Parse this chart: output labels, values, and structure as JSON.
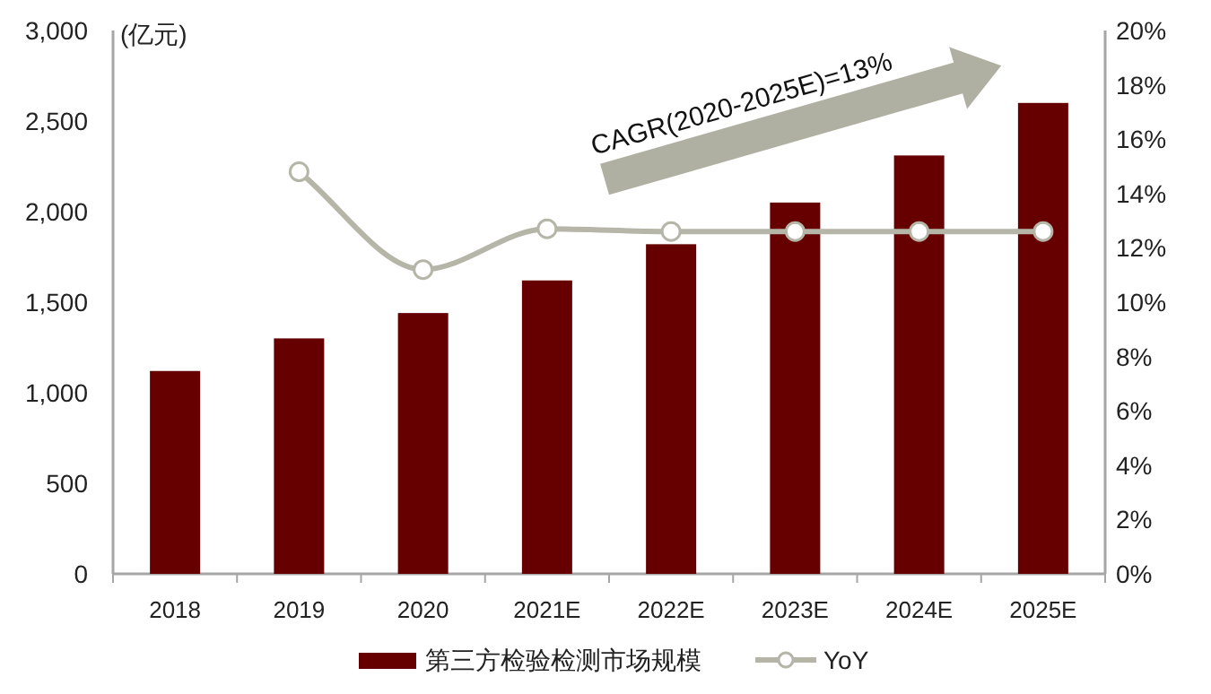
{
  "chart_data": {
    "type": "bar",
    "ylabel": "(亿元)",
    "categories": [
      "2018",
      "2019",
      "2020",
      "2021E",
      "2022E",
      "2023E",
      "2024E",
      "2025E"
    ],
    "series": [
      {
        "name": "第三方检验检测市场规模",
        "color": "#660000",
        "values": [
          1120,
          1300,
          1440,
          1620,
          1820,
          2050,
          2310,
          2600
        ]
      },
      {
        "name": "YoY",
        "type": "line",
        "axis": "y2",
        "color": "#b5b5a8",
        "marker": "circle",
        "values": [
          null,
          14.8,
          11.2,
          12.7,
          12.6,
          12.6,
          12.6,
          12.6
        ]
      }
    ],
    "ylim": [
      0,
      3000
    ],
    "yticks": [
      0,
      500,
      {
        "value": 1000,
        "label": "1,000"
      },
      {
        "value": 1500,
        "label": "1,500"
      },
      {
        "value": 2000,
        "label": "2,000"
      },
      {
        "value": 2500,
        "label": "2,500"
      },
      {
        "value": 3000,
        "label": "3,000"
      }
    ],
    "y2lim": [
      0,
      20
    ],
    "y2ticks": [
      {
        "value": 0,
        "label": "0%"
      },
      {
        "value": 2,
        "label": "2%"
      },
      {
        "value": 4,
        "label": "4%"
      },
      {
        "value": 6,
        "label": "6%"
      },
      {
        "value": 8,
        "label": "8%"
      },
      {
        "value": 10,
        "label": "10%"
      },
      {
        "value": 12,
        "label": "12%"
      },
      {
        "value": 14,
        "label": "14%"
      },
      {
        "value": 16,
        "label": "16%"
      },
      {
        "value": 18,
        "label": "18%"
      },
      {
        "value": 20,
        "label": "20%"
      }
    ],
    "annotations": [
      "CAGR(2020-2025E)=13%"
    ],
    "grid": false,
    "legend": "bottom"
  }
}
